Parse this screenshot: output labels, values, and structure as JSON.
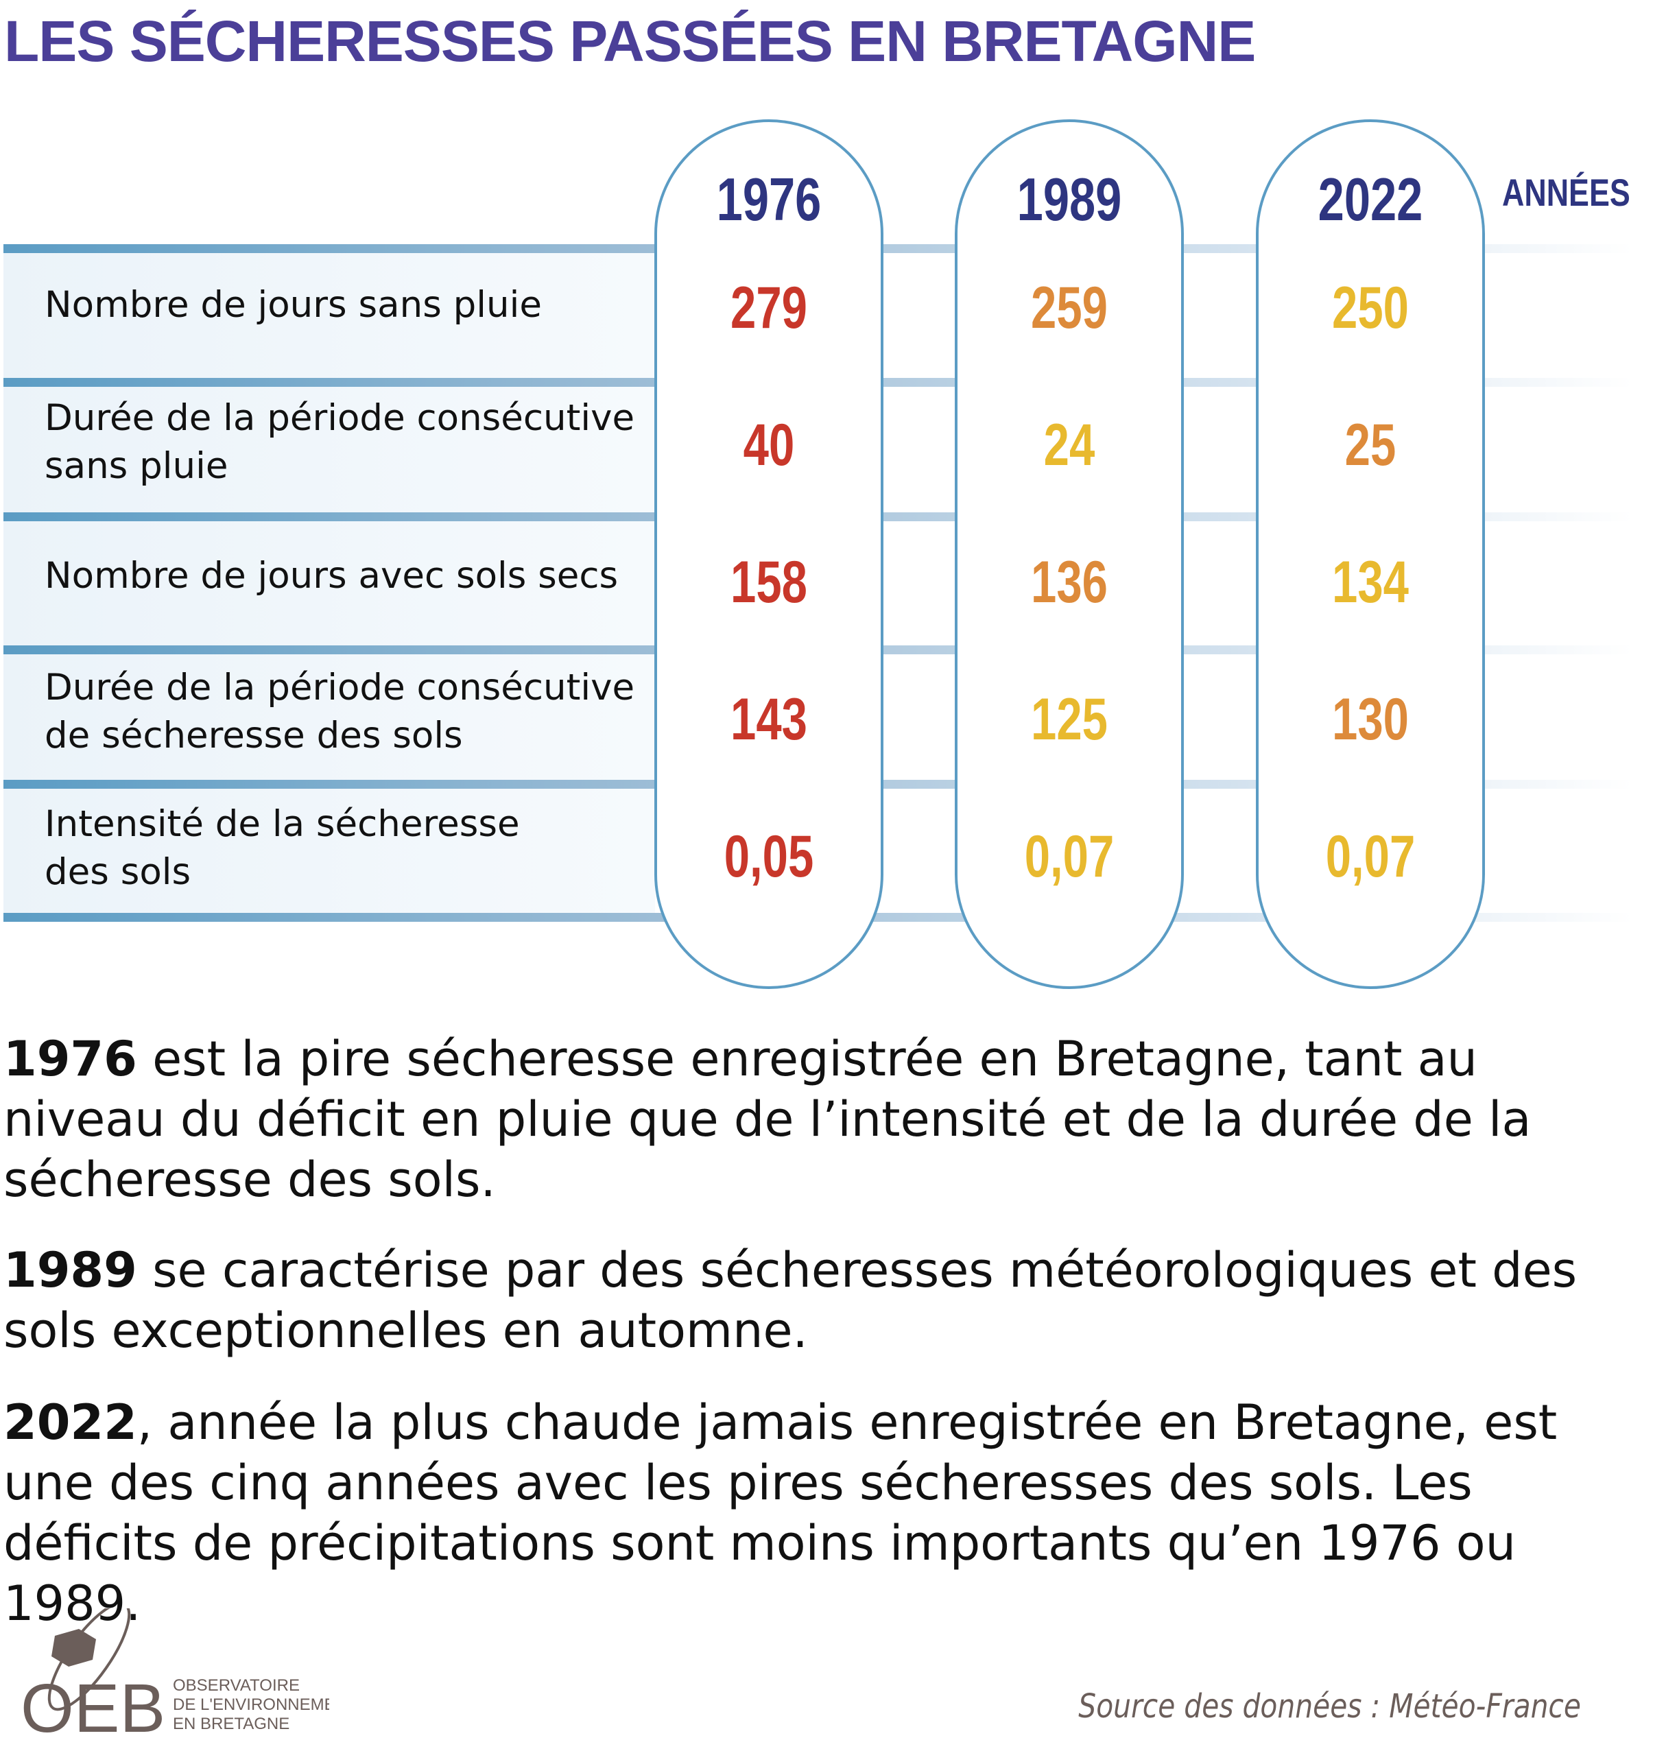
{
  "title": "LES SÉCHERESSES PASSÉES EN BRETAGNE",
  "years_label": "ANNÉES",
  "years": [
    "1976",
    "1989",
    "2022"
  ],
  "colors": {
    "title": "#4b3f98",
    "year": "#2e3580",
    "red": "#c8372a",
    "orange": "#dd8a3a",
    "yellow": "#e8b92e",
    "frame": "#5b9cc4"
  },
  "rows": [
    {
      "label": "Nombre de jours sans pluie",
      "values": [
        {
          "v": "279",
          "c": "red"
        },
        {
          "v": "259",
          "c": "orange"
        },
        {
          "v": "250",
          "c": "yellow"
        }
      ]
    },
    {
      "label": "Durée de la période consécutive\nsans pluie",
      "values": [
        {
          "v": "40",
          "c": "red"
        },
        {
          "v": "24",
          "c": "yellow"
        },
        {
          "v": "25",
          "c": "orange"
        }
      ]
    },
    {
      "label": "Nombre de jours avec sols secs",
      "values": [
        {
          "v": "158",
          "c": "red"
        },
        {
          "v": "136",
          "c": "orange"
        },
        {
          "v": "134",
          "c": "yellow"
        }
      ]
    },
    {
      "label": "Durée de la période consécutive\nde sécheresse des sols",
      "values": [
        {
          "v": "143",
          "c": "red"
        },
        {
          "v": "125",
          "c": "yellow"
        },
        {
          "v": "130",
          "c": "orange"
        }
      ]
    },
    {
      "label": "Intensité de la sécheresse\ndes sols",
      "values": [
        {
          "v": "0,05",
          "c": "red"
        },
        {
          "v": "0,07",
          "c": "yellow"
        },
        {
          "v": "0,07",
          "c": "yellow"
        }
      ]
    }
  ],
  "paragraphs": [
    {
      "year": "1976",
      "text": " est la pire sécheresse enregistrée en Bretagne, tant au niveau du déficit en pluie que de l’intensité et de la durée de la sécheresse des sols."
    },
    {
      "year": "1989",
      "text": " se caractérise par des sécheresses météorologiques et des sols exceptionnelles en automne."
    },
    {
      "year": "2022",
      "text": ", année la plus chaude jamais enregistrée en Bretagne, est une des cinq années avec les pires sécheresses des sols. Les déficits de précipitations sont moins importants qu’en 1976 ou 1989."
    }
  ],
  "logo": {
    "acronym": "OEB",
    "line1": "OBSERVATOIRE",
    "line2": "DE L'ENVIRONNEME",
    "line3": "EN BRETAGNE"
  },
  "source": "Source des données : Météo-France"
}
